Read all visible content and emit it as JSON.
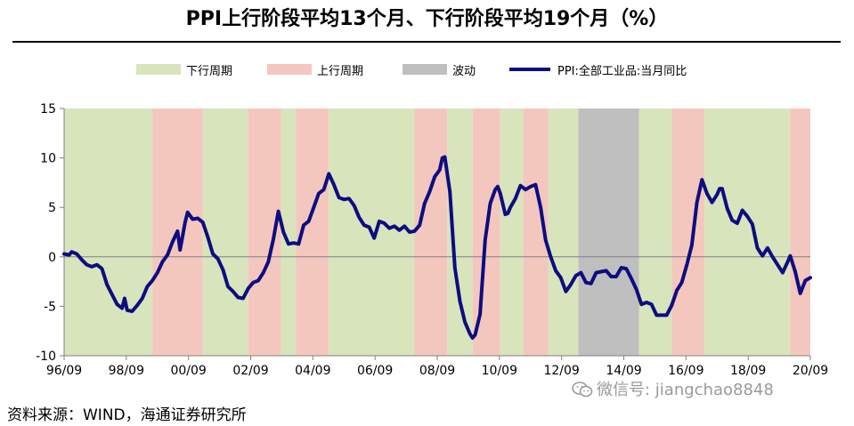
{
  "title": "PPI上行阶段平均13个月、下行阶段平均19个月（%）",
  "legend": {
    "down": "下行周期",
    "up": "上行周期",
    "flat": "波动",
    "line": "PPI:全部工业品:当月同比"
  },
  "colors": {
    "down": "#d8e4bc",
    "up": "#f4c7be",
    "flat": "#bfbfbf",
    "line": "#0d0d80",
    "axis": "#808080"
  },
  "source": "资料来源：WIND，海通证券研究所",
  "watermark": "微信号: jiangchao8848",
  "chart_data": {
    "type": "line",
    "title": "PPI上行阶段平均13个月、下行阶段平均19个月（%）",
    "xlabel": "",
    "ylabel": "",
    "ylim": [
      -10,
      15
    ],
    "yticks": [
      "15",
      "10",
      "5",
      "0",
      "-5",
      "-10"
    ],
    "xticks": [
      "96/09",
      "98/09",
      "00/09",
      "02/09",
      "04/09",
      "06/09",
      "08/09",
      "10/09",
      "12/09",
      "14/09",
      "16/09",
      "18/09",
      "20/09"
    ],
    "x_range": [
      "1996-01",
      "2020-09"
    ],
    "regimes": [
      {
        "type": "down",
        "start": "1996-01",
        "end": "1998-12"
      },
      {
        "type": "up",
        "start": "1998-12",
        "end": "2000-08"
      },
      {
        "type": "down",
        "start": "2000-08",
        "end": "2002-02"
      },
      {
        "type": "up",
        "start": "2002-02",
        "end": "2003-03"
      },
      {
        "type": "down",
        "start": "2003-03",
        "end": "2003-09"
      },
      {
        "type": "up",
        "start": "2003-09",
        "end": "2004-10"
      },
      {
        "type": "down",
        "start": "2004-10",
        "end": "2007-08"
      },
      {
        "type": "up",
        "start": "2007-08",
        "end": "2008-09"
      },
      {
        "type": "down",
        "start": "2008-09",
        "end": "2009-07"
      },
      {
        "type": "up",
        "start": "2009-07",
        "end": "2010-06"
      },
      {
        "type": "down",
        "start": "2010-06",
        "end": "2011-03"
      },
      {
        "type": "up",
        "start": "2011-03",
        "end": "2012-01"
      },
      {
        "type": "down",
        "start": "2012-01",
        "end": "2013-01"
      },
      {
        "type": "flat",
        "start": "2013-01",
        "end": "2015-01"
      },
      {
        "type": "down",
        "start": "2015-01",
        "end": "2016-02"
      },
      {
        "type": "up",
        "start": "2016-02",
        "end": "2017-03"
      },
      {
        "type": "down",
        "start": "2017-03",
        "end": "2020-01"
      },
      {
        "type": "up",
        "start": "2020-01",
        "end": "2020-09"
      }
    ],
    "series": [
      {
        "name": "PPI:全部工业品:当月同比",
        "points": [
          [
            "1996-01",
            0.3
          ],
          [
            "1996-03",
            0.2
          ],
          [
            "1996-04",
            0.5
          ],
          [
            "1996-06",
            0.3
          ],
          [
            "1996-08",
            -0.3
          ],
          [
            "1996-10",
            -0.8
          ],
          [
            "1996-12",
            -1.0
          ],
          [
            "1997-02",
            -0.8
          ],
          [
            "1997-04",
            -1.2
          ],
          [
            "1997-06",
            -2.8
          ],
          [
            "1997-08",
            -3.8
          ],
          [
            "1997-10",
            -4.8
          ],
          [
            "1997-12",
            -5.2
          ],
          [
            "1998-01",
            -4.2
          ],
          [
            "1998-02",
            -5.4
          ],
          [
            "1998-04",
            -5.5
          ],
          [
            "1998-06",
            -4.9
          ],
          [
            "1998-08",
            -4.2
          ],
          [
            "1998-10",
            -3.0
          ],
          [
            "1998-12",
            -2.4
          ],
          [
            "1999-02",
            -1.6
          ],
          [
            "1999-04",
            -0.5
          ],
          [
            "1999-06",
            0.2
          ],
          [
            "1999-08",
            1.5
          ],
          [
            "1999-10",
            2.6
          ],
          [
            "1999-11",
            0.7
          ],
          [
            "2000-01",
            3.5
          ],
          [
            "2000-02",
            4.5
          ],
          [
            "2000-04",
            3.8
          ],
          [
            "2000-06",
            3.9
          ],
          [
            "2000-08",
            3.5
          ],
          [
            "2000-10",
            2.0
          ],
          [
            "2000-12",
            0.3
          ],
          [
            "2001-02",
            -0.2
          ],
          [
            "2001-04",
            -1.3
          ],
          [
            "2001-06",
            -3.0
          ],
          [
            "2001-08",
            -3.5
          ],
          [
            "2001-10",
            -4.1
          ],
          [
            "2001-12",
            -4.2
          ],
          [
            "2002-02",
            -3.2
          ],
          [
            "2002-04",
            -2.6
          ],
          [
            "2002-06",
            -2.4
          ],
          [
            "2002-08",
            -1.6
          ],
          [
            "2002-10",
            -0.5
          ],
          [
            "2002-12",
            1.8
          ],
          [
            "2003-02",
            4.6
          ],
          [
            "2003-04",
            2.5
          ],
          [
            "2003-06",
            1.3
          ],
          [
            "2003-08",
            1.4
          ],
          [
            "2003-10",
            1.3
          ],
          [
            "2003-12",
            3.2
          ],
          [
            "2004-02",
            3.6
          ],
          [
            "2004-04",
            5.0
          ],
          [
            "2004-06",
            6.4
          ],
          [
            "2004-08",
            6.8
          ],
          [
            "2004-10",
            8.4
          ],
          [
            "2004-12",
            7.3
          ],
          [
            "2005-02",
            6.0
          ],
          [
            "2005-04",
            5.8
          ],
          [
            "2005-06",
            5.9
          ],
          [
            "2005-08",
            5.2
          ],
          [
            "2005-10",
            4.0
          ],
          [
            "2005-12",
            3.2
          ],
          [
            "2006-02",
            3.0
          ],
          [
            "2006-04",
            1.9
          ],
          [
            "2006-06",
            3.6
          ],
          [
            "2006-08",
            3.4
          ],
          [
            "2006-10",
            2.9
          ],
          [
            "2006-12",
            3.1
          ],
          [
            "2007-02",
            2.7
          ],
          [
            "2007-04",
            3.1
          ],
          [
            "2007-06",
            2.5
          ],
          [
            "2007-08",
            2.6
          ],
          [
            "2007-10",
            3.2
          ],
          [
            "2007-12",
            5.4
          ],
          [
            "2008-02",
            6.6
          ],
          [
            "2008-04",
            8.1
          ],
          [
            "2008-06",
            8.8
          ],
          [
            "2008-07",
            10.0
          ],
          [
            "2008-08",
            10.1
          ],
          [
            "2008-10",
            6.6
          ],
          [
            "2008-12",
            -1.1
          ],
          [
            "2009-02",
            -4.5
          ],
          [
            "2009-04",
            -6.6
          ],
          [
            "2009-06",
            -7.8
          ],
          [
            "2009-07",
            -8.2
          ],
          [
            "2009-08",
            -7.9
          ],
          [
            "2009-10",
            -5.8
          ],
          [
            "2009-12",
            1.7
          ],
          [
            "2010-02",
            5.4
          ],
          [
            "2010-04",
            6.8
          ],
          [
            "2010-05",
            7.1
          ],
          [
            "2010-06",
            6.4
          ],
          [
            "2010-08",
            4.3
          ],
          [
            "2010-09",
            4.4
          ],
          [
            "2010-10",
            5.0
          ],
          [
            "2010-12",
            5.9
          ],
          [
            "2011-02",
            7.2
          ],
          [
            "2011-04",
            6.8
          ],
          [
            "2011-06",
            7.1
          ],
          [
            "2011-08",
            7.3
          ],
          [
            "2011-10",
            5.0
          ],
          [
            "2011-12",
            1.7
          ],
          [
            "2012-02",
            0.0
          ],
          [
            "2012-04",
            -1.4
          ],
          [
            "2012-06",
            -2.1
          ],
          [
            "2012-08",
            -3.5
          ],
          [
            "2012-10",
            -2.8
          ],
          [
            "2012-12",
            -1.9
          ],
          [
            "2013-02",
            -1.6
          ],
          [
            "2013-04",
            -2.6
          ],
          [
            "2013-06",
            -2.7
          ],
          [
            "2013-08",
            -1.6
          ],
          [
            "2013-10",
            -1.5
          ],
          [
            "2013-12",
            -1.4
          ],
          [
            "2014-02",
            -2.0
          ],
          [
            "2014-04",
            -2.0
          ],
          [
            "2014-06",
            -1.1
          ],
          [
            "2014-08",
            -1.2
          ],
          [
            "2014-10",
            -2.2
          ],
          [
            "2014-12",
            -3.3
          ],
          [
            "2015-02",
            -4.8
          ],
          [
            "2015-04",
            -4.6
          ],
          [
            "2015-06",
            -4.8
          ],
          [
            "2015-08",
            -5.9
          ],
          [
            "2015-10",
            -5.9
          ],
          [
            "2015-12",
            -5.9
          ],
          [
            "2016-02",
            -4.9
          ],
          [
            "2016-04",
            -3.4
          ],
          [
            "2016-06",
            -2.6
          ],
          [
            "2016-08",
            -0.8
          ],
          [
            "2016-10",
            1.2
          ],
          [
            "2016-12",
            5.5
          ],
          [
            "2017-02",
            7.8
          ],
          [
            "2017-04",
            6.4
          ],
          [
            "2017-06",
            5.5
          ],
          [
            "2017-08",
            6.3
          ],
          [
            "2017-09",
            6.9
          ],
          [
            "2017-10",
            6.9
          ],
          [
            "2017-12",
            4.9
          ],
          [
            "2018-02",
            3.7
          ],
          [
            "2018-04",
            3.4
          ],
          [
            "2018-06",
            4.7
          ],
          [
            "2018-08",
            4.1
          ],
          [
            "2018-10",
            3.3
          ],
          [
            "2018-12",
            0.9
          ],
          [
            "2019-02",
            0.1
          ],
          [
            "2019-04",
            0.9
          ],
          [
            "2019-06",
            0.0
          ],
          [
            "2019-08",
            -0.8
          ],
          [
            "2019-10",
            -1.6
          ],
          [
            "2019-12",
            -0.5
          ],
          [
            "2020-01",
            0.1
          ],
          [
            "2020-03",
            -1.5
          ],
          [
            "2020-05",
            -3.7
          ],
          [
            "2020-07",
            -2.4
          ],
          [
            "2020-09",
            -2.1
          ]
        ]
      }
    ]
  }
}
